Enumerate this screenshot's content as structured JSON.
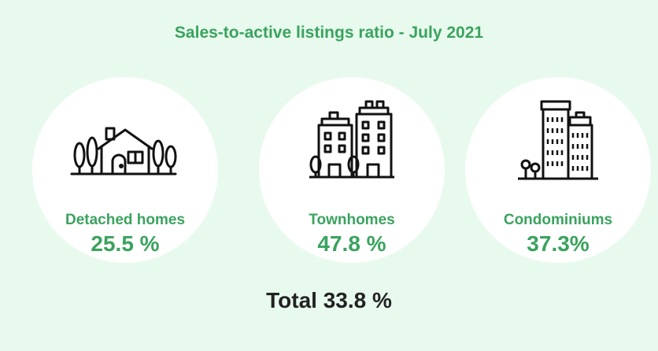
{
  "title": "Sales-to-active listings ratio - July 2021",
  "categories": [
    {
      "label": "Detached homes",
      "value": "25.5 %",
      "icon": "house-icon"
    },
    {
      "label": "Townhomes",
      "value": "47.8 %",
      "icon": "townhouse-buildings-icon"
    },
    {
      "label": "Condominiums",
      "value": "37.3%",
      "icon": "condo-towers-icon"
    }
  ],
  "total": "Total 33.8 %",
  "colors": {
    "accent": "#3aa35e",
    "background": "#e8faee",
    "circle": "#ffffff",
    "text": "#222222"
  }
}
